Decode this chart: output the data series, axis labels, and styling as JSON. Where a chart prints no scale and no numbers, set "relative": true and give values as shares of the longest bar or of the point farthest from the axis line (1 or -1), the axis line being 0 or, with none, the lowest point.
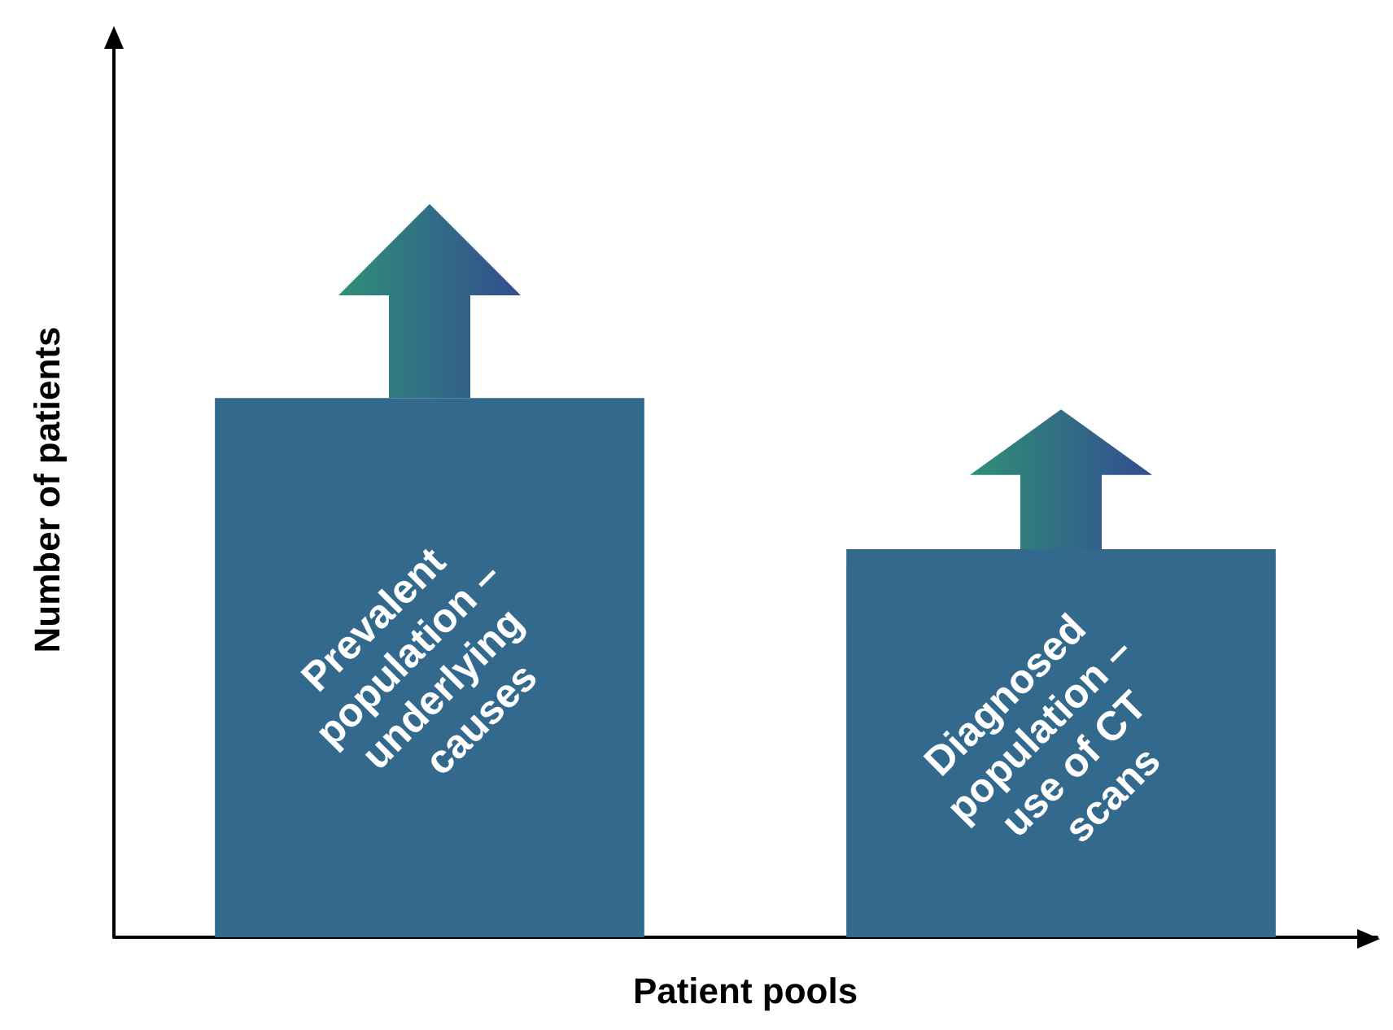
{
  "chart_data": {
    "type": "bar",
    "relative": true,
    "xlabel": "Patient pools",
    "ylabel": "Number of patients",
    "categories": [
      null,
      null
    ],
    "annotations": [
      "Prevalent population – underlying causes",
      "Diagnosed population – use of CT scans"
    ],
    "series": [
      {
        "color": "#32698c",
        "values": [
          1,
          0.72
        ]
      }
    ],
    "grid": false
  }
}
